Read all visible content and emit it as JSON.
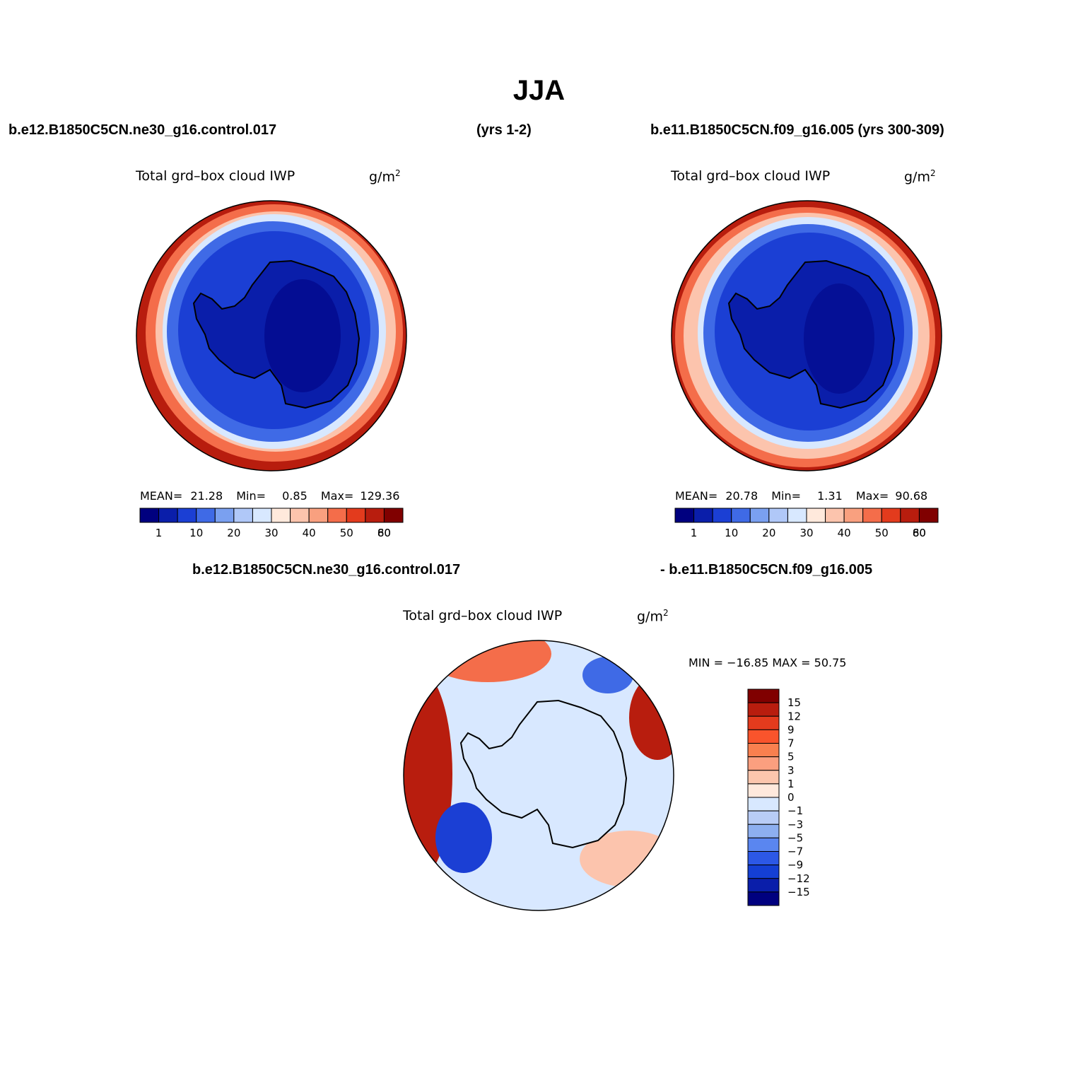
{
  "title": "JJA",
  "header": {
    "left": "b.e12.B1850C5CN.ne30_g16.control.017",
    "middle": "(yrs 1-2)",
    "right": "b.e11.B1850C5CN.f09_g16.005 (yrs 300-309)"
  },
  "diff_header": {
    "left": "b.e12.B1850C5CN.ne30_g16.control.017",
    "right": "- b.e11.B1850C5CN.f09_g16.005"
  },
  "panels": [
    {
      "name": "Total grd–box cloud IWP",
      "units": "g/m",
      "units_sup": "2",
      "stats": {
        "mean_label": "MEAN=",
        "mean": "21.28",
        "min_label": "Min=",
        "min": "0.85",
        "max_label": "Max=",
        "max": "129.36"
      }
    },
    {
      "name": "Total grd–box cloud IWP",
      "units": "g/m",
      "units_sup": "2",
      "stats": {
        "mean_label": "MEAN=",
        "mean": "20.78",
        "min_label": "Min=",
        "min": "1.31",
        "max_label": "Max=",
        "max": "90.68"
      }
    },
    {
      "name": "Total grd–box cloud IWP",
      "units": "g/m",
      "units_sup": "2",
      "stats": {
        "text": "MIN = −16.85 MAX =  50.75"
      }
    }
  ],
  "colorbar_abs": {
    "colors": [
      "#00007f",
      "#0a1eaa",
      "#1b3fd4",
      "#3f6ae6",
      "#7aa0f0",
      "#b0c8f8",
      "#d8e8ff",
      "#ffe9dc",
      "#fcc4ad",
      "#f9a07f",
      "#f46d4a",
      "#e33b1d",
      "#b81d0e",
      "#800000"
    ],
    "labels": [
      "1",
      "10",
      "20",
      "30",
      "40",
      "50",
      "60",
      "80"
    ]
  },
  "colorbar_diff": {
    "colors": [
      "#800000",
      "#b81d0e",
      "#e33b1d",
      "#f9542c",
      "#f9804f",
      "#fb9f7f",
      "#fcc6ad",
      "#ffe9dc",
      "#d8e8ff",
      "#b8ccf6",
      "#8daff0",
      "#5a86f0",
      "#2c58e6",
      "#143fd4",
      "#0a1eaa",
      "#00007f"
    ],
    "labels": [
      "15",
      "12",
      "9",
      "7",
      "5",
      "3",
      "1",
      "0",
      "−1",
      "−3",
      "−5",
      "−7",
      "−9",
      "−12",
      "−15"
    ]
  },
  "field_colors": {
    "ocean_high": "#b81d0e",
    "ocean_mid": "#f46d4a",
    "ocean_low": "#fcc4ad",
    "transition": "#d8e8ff",
    "ice_ring": "#3f6ae6",
    "land": "#1b3fd4",
    "plateau": "#0a1eaa",
    "diff_pos": "#b81d0e",
    "diff_neutral": "#d8e8ff",
    "diff_neg": "#1b3fd4"
  }
}
